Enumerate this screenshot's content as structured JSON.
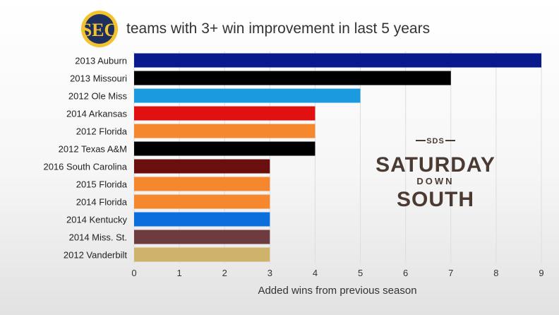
{
  "chart_data": {
    "type": "bar",
    "orientation": "horizontal",
    "title": "teams with 3+ win improvement in last 5 years",
    "xlabel": "Added wins from previous season",
    "ylabel": "",
    "xlim": [
      0,
      9
    ],
    "xticks": [
      "0",
      "1",
      "2",
      "3",
      "4",
      "5",
      "6",
      "7",
      "8",
      "9"
    ],
    "grid": true,
    "categories": [
      "2013 Auburn",
      "2013 Missouri",
      "2012 Ole Miss",
      "2014 Arkansas",
      "2012 Florida",
      "2012 Texas A&M",
      "2016 South Carolina",
      "2015 Florida",
      "2014 Florida",
      "2014 Kentucky",
      "2014 Miss. St.",
      "2012 Vanderbilt"
    ],
    "values": [
      9,
      7,
      5,
      4,
      4,
      4,
      3,
      3,
      3,
      3,
      3,
      3
    ],
    "colors": [
      "#0a1a8c",
      "#000000",
      "#1b9ae0",
      "#e01010",
      "#f5882f",
      "#000000",
      "#6b0e0e",
      "#f5882f",
      "#f5882f",
      "#0a6fdc",
      "#6e3b3f",
      "#cfb36a"
    ]
  },
  "logo": {
    "text": "SEC",
    "colors": {
      "ring": "#f2c230",
      "inner": "#1c2f5e",
      "letters": "#f2c230"
    }
  },
  "watermark": {
    "small": "SDS",
    "line1": "SATURDAY",
    "line2": "DOWN",
    "line3": "SOUTH",
    "color": "#4a3a32"
  }
}
